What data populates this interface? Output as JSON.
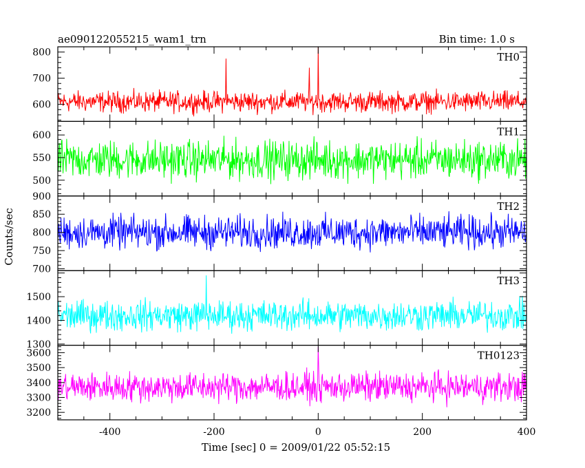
{
  "header": {
    "title": "ae090122055215_wam1_trn",
    "bin_time": "Bin time: 1.0 s"
  },
  "axes": {
    "xlabel": "Time [sec] 0 = 2009/01/22 05:52:15",
    "ylabel": "Counts/sec"
  },
  "chart_data": {
    "type": "line",
    "x": {
      "range": [
        -500,
        400
      ],
      "step": 1,
      "ticks": [
        -400,
        -200,
        0,
        200,
        400
      ]
    },
    "panels": [
      {
        "name": "TH0",
        "color": "#ff0000",
        "ylim": [
          535,
          820
        ],
        "yticks": [
          600,
          700,
          800
        ],
        "baseline": 610,
        "noise_amplitude": 28,
        "spikes": [
          {
            "x": -177,
            "y": 775
          },
          {
            "x": 0,
            "y": 820
          },
          {
            "x": -17,
            "y": 740
          }
        ]
      },
      {
        "name": "TH1",
        "color": "#00ff00",
        "ylim": [
          465,
          630
        ],
        "yticks": [
          500,
          550,
          600
        ],
        "baseline": 545,
        "noise_amplitude": 30,
        "spikes": []
      },
      {
        "name": "TH2",
        "color": "#0000ff",
        "ylim": [
          695,
          900
        ],
        "yticks": [
          700,
          750,
          800,
          850,
          900
        ],
        "baseline": 800,
        "noise_amplitude": 32,
        "spikes": []
      },
      {
        "name": "TH3",
        "color": "#00ffff",
        "ylim": [
          1295,
          1610
        ],
        "yticks": [
          1300,
          1400,
          1500
        ],
        "baseline": 1420,
        "noise_amplitude": 45,
        "spikes": [
          {
            "x": -215,
            "y": 1590
          }
        ]
      },
      {
        "name": "TH0123",
        "color": "#ff00ff",
        "ylim": [
          3150,
          3650
        ],
        "yticks": [
          3200,
          3300,
          3400,
          3500,
          3600
        ],
        "baseline": 3370,
        "noise_amplitude": 70,
        "spikes": [
          {
            "x": 0,
            "y": 3640
          }
        ]
      }
    ]
  }
}
